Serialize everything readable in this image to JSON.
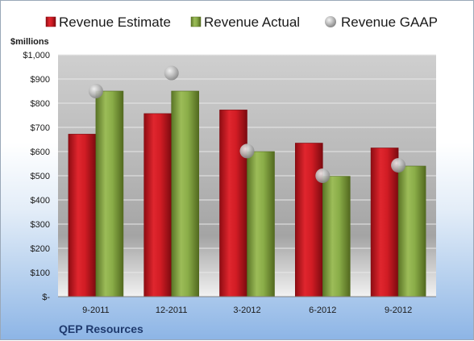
{
  "chart_data": {
    "type": "bar",
    "categories": [
      "9-2011",
      "12-2011",
      "3-2012",
      "6-2012",
      "9-2012"
    ],
    "series": [
      {
        "name": "Revenue Estimate",
        "type": "bar",
        "color": "#c8141e",
        "values": [
          672,
          757,
          772,
          635,
          615
        ]
      },
      {
        "name": "Revenue Actual",
        "type": "bar",
        "color": "#7e9e3c",
        "values": [
          850,
          850,
          600,
          498,
          540
        ]
      },
      {
        "name": "Revenue GAAP",
        "type": "scatter",
        "color": "#a8a8a8",
        "values": [
          850,
          925,
          602,
          500,
          543
        ]
      }
    ],
    "ylabel": "$millions",
    "ylim": [
      0,
      1000
    ],
    "yticks": [
      0,
      100,
      200,
      300,
      400,
      500,
      600,
      700,
      800,
      900,
      1000
    ],
    "ytick_labels": [
      "$-",
      "$100",
      "$200",
      "$300",
      "$400",
      "$500",
      "$600",
      "$700",
      "$800",
      "$900",
      "$1,000"
    ],
    "grid": true,
    "legend": "top"
  },
  "footer": {
    "company": "QEP Resources"
  }
}
